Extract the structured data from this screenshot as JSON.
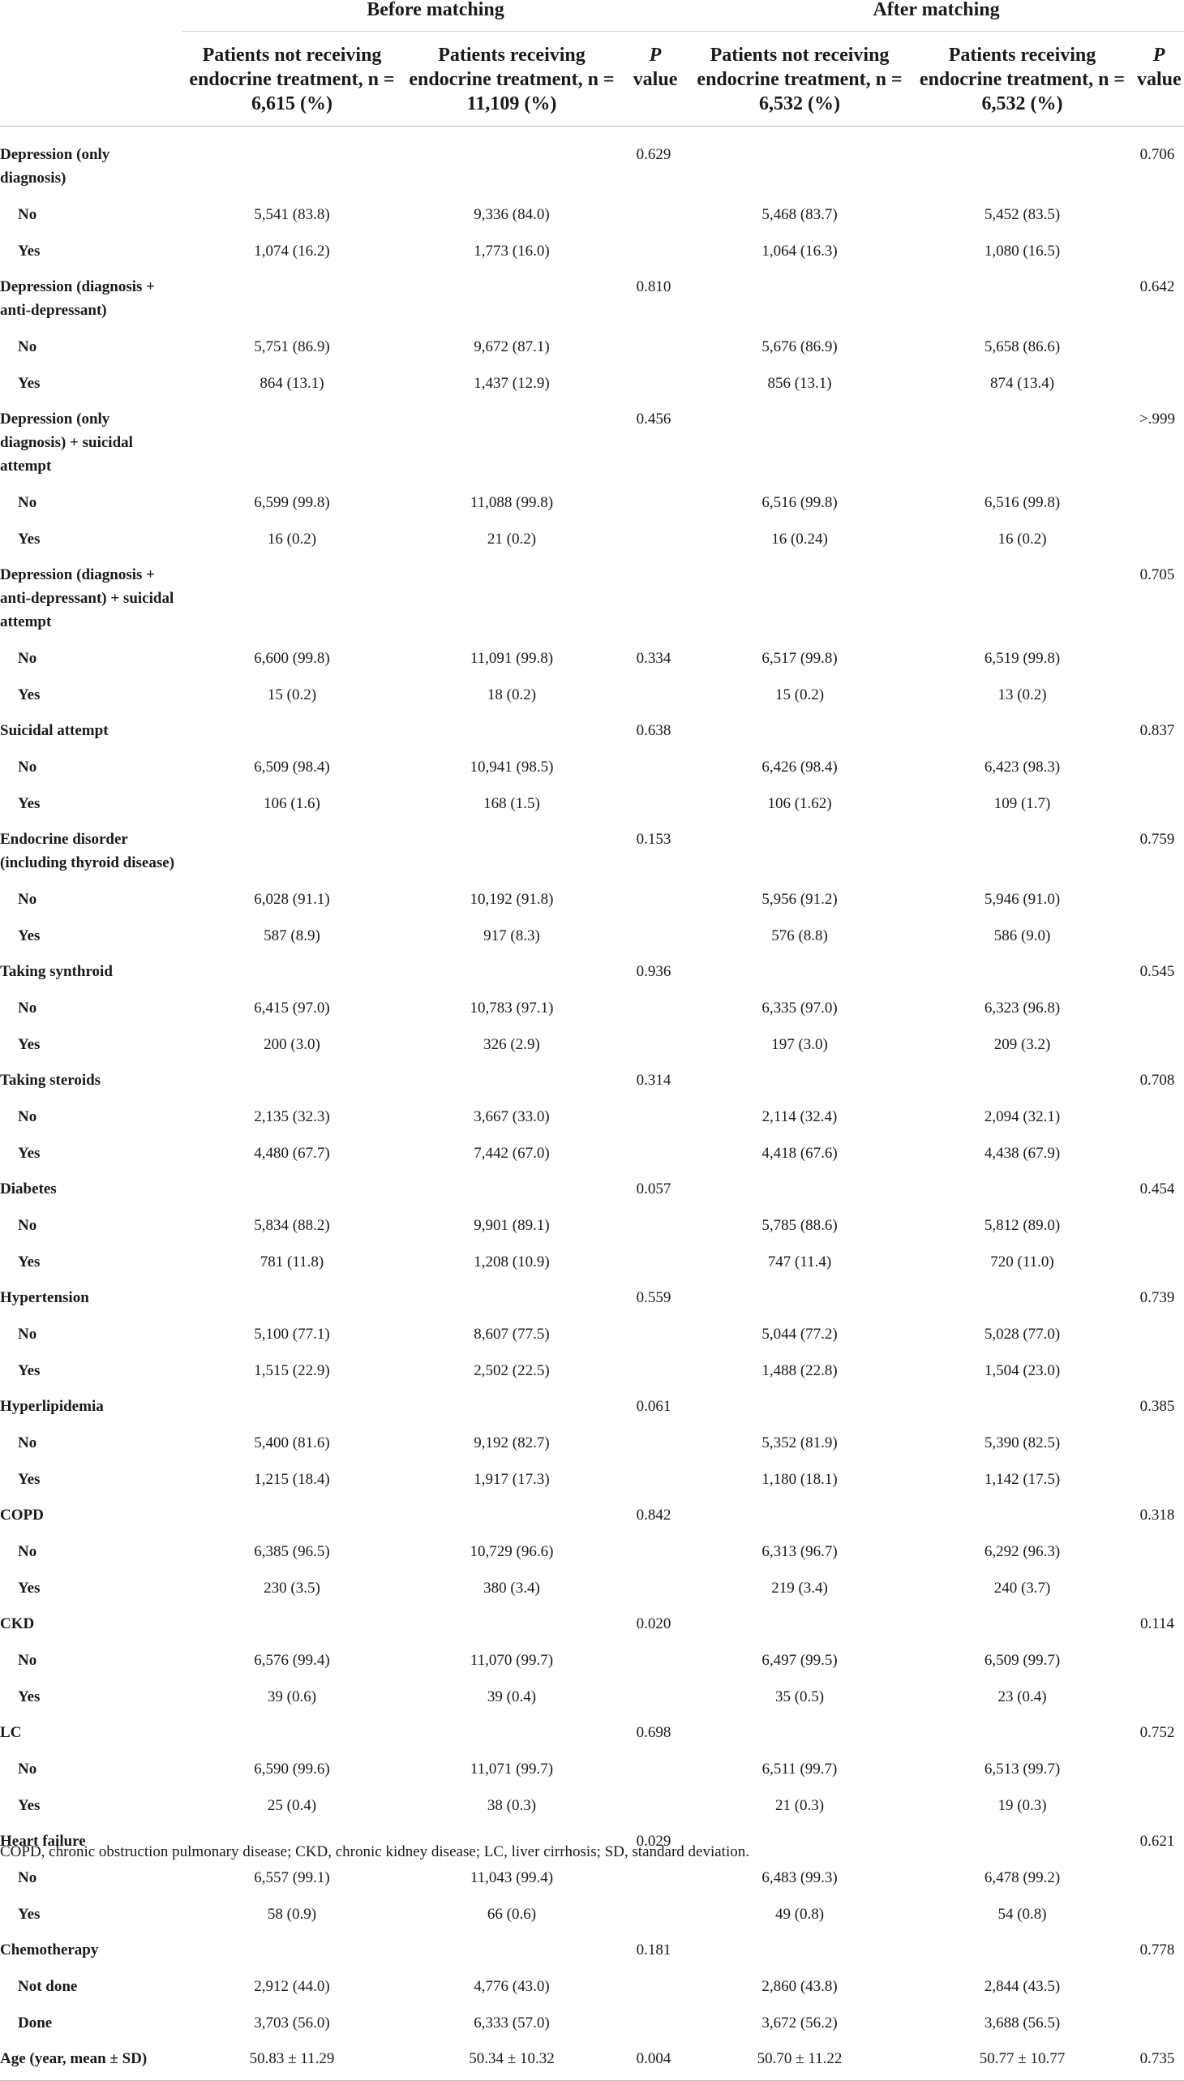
{
  "header": {
    "group_before": "Before matching",
    "group_after": "After matching",
    "col_before_not": "Patients not receiving endocrine treatment, n = 6,615 (%)",
    "col_before_rec": "Patients receiving endocrine treatment, n = 11,109 (%)",
    "col_after_not": "Patients not receiving endocrine treatment, n = 6,532 (%)",
    "col_after_rec": "Patients receiving endocrine treatment, n = 6,532 (%)",
    "p_italic": "P",
    "p_value": "value"
  },
  "rows": [
    {
      "kind": "cat",
      "label": "Depression (only diagnosis)",
      "p1": "0.629",
      "p2": "0.706"
    },
    {
      "kind": "opt",
      "label": "No",
      "b1": "5,541 (83.8)",
      "b2": "9,336 (84.0)",
      "a1": "5,468 (83.7)",
      "a2": "5,452 (83.5)"
    },
    {
      "kind": "opt",
      "label": "Yes",
      "b1": "1,074 (16.2)",
      "b2": "1,773 (16.0)",
      "a1": "1,064 (16.3)",
      "a2": "1,080 (16.5)"
    },
    {
      "kind": "cat",
      "label": "Depression (diagnosis + anti-depressant)",
      "p1": "0.810",
      "p2": "0.642"
    },
    {
      "kind": "opt",
      "label": "No",
      "b1": "5,751 (86.9)",
      "b2": "9,672 (87.1)",
      "a1": "5,676 (86.9)",
      "a2": "5,658 (86.6)"
    },
    {
      "kind": "opt",
      "label": "Yes",
      "b1": "864 (13.1)",
      "b2": "1,437 (12.9)",
      "a1": "856 (13.1)",
      "a2": "874 (13.4)"
    },
    {
      "kind": "cat",
      "label": "Depression (only diagnosis) + suicidal attempt",
      "p1": "0.456",
      "p2": ">.999"
    },
    {
      "kind": "opt",
      "label": "No",
      "b1": "6,599 (99.8)",
      "b2": "11,088 (99.8)",
      "a1": "6,516 (99.8)",
      "a2": "6,516 (99.8)"
    },
    {
      "kind": "opt",
      "label": "Yes",
      "b1": "16 (0.2)",
      "b2": "21 (0.2)",
      "a1": "16 (0.24)",
      "a2": "16 (0.2)"
    },
    {
      "kind": "cat",
      "label": "Depression (diagnosis + anti-depressant) + suicidal attempt",
      "p1": "",
      "p2": "0.705"
    },
    {
      "kind": "opt",
      "label": "No",
      "b1": "6,600 (99.8)",
      "b2": "11,091 (99.8)",
      "p1": "0.334",
      "a1": "6,517 (99.8)",
      "a2": "6,519 (99.8)"
    },
    {
      "kind": "opt",
      "label": "Yes",
      "b1": "15 (0.2)",
      "b2": "18 (0.2)",
      "a1": "15 (0.2)",
      "a2": "13 (0.2)"
    },
    {
      "kind": "cat",
      "label": "Suicidal attempt",
      "p1": "0.638",
      "p2": "0.837"
    },
    {
      "kind": "opt",
      "label": "No",
      "b1": "6,509 (98.4)",
      "b2": "10,941 (98.5)",
      "a1": "6,426 (98.4)",
      "a2": "6,423 (98.3)"
    },
    {
      "kind": "opt",
      "label": "Yes",
      "b1": "106 (1.6)",
      "b2": "168 (1.5)",
      "a1": "106 (1.62)",
      "a2": "109 (1.7)"
    },
    {
      "kind": "cat",
      "label": "Endocrine disorder (including thyroid disease)",
      "p1": "0.153",
      "p2": "0.759"
    },
    {
      "kind": "opt",
      "label": "No",
      "b1": "6,028 (91.1)",
      "b2": "10,192 (91.8)",
      "a1": "5,956 (91.2)",
      "a2": "5,946 (91.0)"
    },
    {
      "kind": "opt",
      "label": "Yes",
      "b1": "587 (8.9)",
      "b2": "917 (8.3)",
      "a1": "576 (8.8)",
      "a2": "586 (9.0)"
    },
    {
      "kind": "cat",
      "label": "Taking synthroid",
      "p1": "0.936",
      "p2": "0.545"
    },
    {
      "kind": "opt",
      "label": "No",
      "b1": "6,415 (97.0)",
      "b2": "10,783 (97.1)",
      "a1": "6,335 (97.0)",
      "a2": "6,323 (96.8)"
    },
    {
      "kind": "opt",
      "label": "Yes",
      "b1": "200 (3.0)",
      "b2": "326 (2.9)",
      "a1": "197 (3.0)",
      "a2": "209 (3.2)"
    },
    {
      "kind": "cat",
      "label": "Taking steroids",
      "p1": "0.314",
      "p2": "0.708"
    },
    {
      "kind": "opt",
      "label": "No",
      "b1": "2,135 (32.3)",
      "b2": "3,667 (33.0)",
      "a1": "2,114 (32.4)",
      "a2": "2,094 (32.1)"
    },
    {
      "kind": "opt",
      "label": "Yes",
      "b1": "4,480 (67.7)",
      "b2": "7,442 (67.0)",
      "a1": "4,418 (67.6)",
      "a2": "4,438 (67.9)"
    },
    {
      "kind": "cat",
      "label": "Diabetes",
      "p1": "0.057",
      "p2": "0.454"
    },
    {
      "kind": "opt",
      "label": "No",
      "b1": "5,834 (88.2)",
      "b2": "9,901 (89.1)",
      "a1": "5,785 (88.6)",
      "a2": "5,812 (89.0)"
    },
    {
      "kind": "opt",
      "label": "Yes",
      "b1": "781 (11.8)",
      "b2": "1,208 (10.9)",
      "a1": "747 (11.4)",
      "a2": "720 (11.0)"
    },
    {
      "kind": "cat",
      "label": "Hypertension",
      "p1": "0.559",
      "p2": "0.739"
    },
    {
      "kind": "opt",
      "label": "No",
      "b1": "5,100 (77.1)",
      "b2": "8,607 (77.5)",
      "a1": "5,044 (77.2)",
      "a2": "5,028 (77.0)"
    },
    {
      "kind": "opt",
      "label": "Yes",
      "b1": "1,515 (22.9)",
      "b2": "2,502 (22.5)",
      "a1": "1,488 (22.8)",
      "a2": "1,504 (23.0)"
    },
    {
      "kind": "cat",
      "label": "Hyperlipidemia",
      "p1": "0.061",
      "p2": "0.385"
    },
    {
      "kind": "opt",
      "label": "No",
      "b1": "5,400 (81.6)",
      "b2": "9,192 (82.7)",
      "a1": "5,352 (81.9)",
      "a2": "5,390 (82.5)"
    },
    {
      "kind": "opt",
      "label": "Yes",
      "b1": "1,215 (18.4)",
      "b2": "1,917 (17.3)",
      "a1": "1,180 (18.1)",
      "a2": "1,142 (17.5)"
    },
    {
      "kind": "cat",
      "label": "COPD",
      "p1": "0.842",
      "p2": "0.318"
    },
    {
      "kind": "opt",
      "label": "No",
      "b1": "6,385 (96.5)",
      "b2": "10,729 (96.6)",
      "a1": "6,313 (96.7)",
      "a2": "6,292 (96.3)"
    },
    {
      "kind": "opt",
      "label": "Yes",
      "b1": "230 (3.5)",
      "b2": "380 (3.4)",
      "a1": "219 (3.4)",
      "a2": "240 (3.7)"
    },
    {
      "kind": "cat",
      "label": "CKD",
      "p1": "0.020",
      "p2": "0.114"
    },
    {
      "kind": "opt",
      "label": "No",
      "b1": "6,576 (99.4)",
      "b2": "11,070 (99.7)",
      "a1": "6,497 (99.5)",
      "a2": "6,509 (99.7)"
    },
    {
      "kind": "opt",
      "label": "Yes",
      "b1": "39 (0.6)",
      "b2": "39 (0.4)",
      "a1": "35 (0.5)",
      "a2": "23 (0.4)"
    },
    {
      "kind": "cat",
      "label": "LC",
      "p1": "0.698",
      "p2": "0.752"
    },
    {
      "kind": "opt",
      "label": "No",
      "b1": "6,590 (99.6)",
      "b2": "11,071 (99.7)",
      "a1": "6,511 (99.7)",
      "a2": "6,513 (99.7)"
    },
    {
      "kind": "opt",
      "label": "Yes",
      "b1": "25 (0.4)",
      "b2": "38 (0.3)",
      "a1": "21 (0.3)",
      "a2": "19 (0.3)"
    },
    {
      "kind": "cat",
      "label": "Heart failure",
      "p1": "0.029",
      "p2": "0.621"
    },
    {
      "kind": "opt",
      "label": "No",
      "b1": "6,557 (99.1)",
      "b2": "11,043 (99.4)",
      "a1": "6,483 (99.3)",
      "a2": "6,478 (99.2)"
    },
    {
      "kind": "opt",
      "label": "Yes",
      "b1": "58 (0.9)",
      "b2": "66 (0.6)",
      "a1": "49 (0.8)",
      "a2": "54 (0.8)"
    },
    {
      "kind": "cat",
      "label": "Chemotherapy",
      "p1": "0.181",
      "p2": "0.778"
    },
    {
      "kind": "opt",
      "label": "Not done",
      "b1": "2,912 (44.0)",
      "b2": "4,776 (43.0)",
      "a1": "2,860 (43.8)",
      "a2": "2,844 (43.5)"
    },
    {
      "kind": "opt",
      "label": "Done",
      "b1": "3,703 (56.0)",
      "b2": "6,333 (57.0)",
      "a1": "3,672 (56.2)",
      "a2": "3,688 (56.5)"
    },
    {
      "kind": "cat",
      "label": "Age (year, mean ± SD)",
      "b1": "50.83 ± 11.29",
      "b2": "50.34 ± 10.32",
      "p1": "0.004",
      "a1": "50.70 ± 11.22",
      "a2": "50.77 ± 10.77",
      "p2": "0.735"
    }
  ],
  "footnote": "COPD, chronic obstruction pulmonary disease; CKD, chronic kidney disease; LC, liver cirrhosis; SD, standard deviation."
}
